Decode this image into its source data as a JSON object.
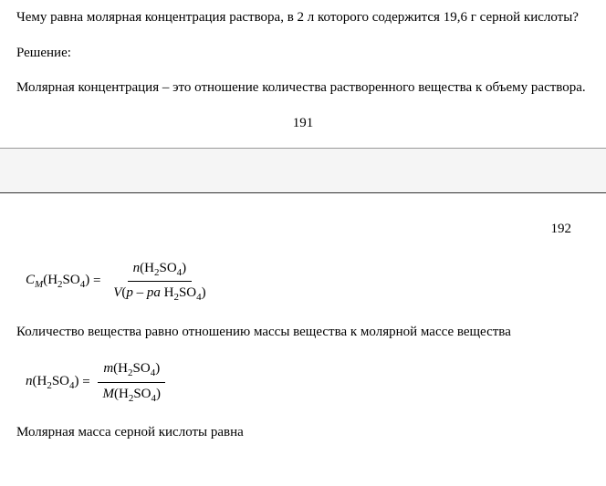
{
  "page1": {
    "question": "Чему равна молярная концентрация раствора, в 2 л которого содержится 19,6 г серной кислоты?",
    "solutionLabel": "Решение:",
    "definition": "Молярная концентрация – это отношение количества растворенного вещества к объему раствора.",
    "pageNumber": "191"
  },
  "page2": {
    "pageNumber": "192",
    "formula1": {
      "lhs": {
        "symbol": "C",
        "subscript": "M",
        "arg": "H₂SO₄"
      },
      "numerator": {
        "symbol": "n",
        "arg": "H₂SO₄"
      },
      "denominator": {
        "symbol": "V",
        "arg": "p – ра H₂SO₄"
      }
    },
    "text1": "Количество вещества равно отношению массы вещества к молярной массе вещества",
    "formula2": {
      "lhs": {
        "symbol": "n",
        "arg": "H₂SO₄"
      },
      "numerator": {
        "symbol": "m",
        "arg": "H₂SO₄"
      },
      "denominator": {
        "symbol": "M",
        "arg": "H₂SO₄"
      }
    },
    "text2": "Молярная масса серной кислоты равна"
  },
  "chem": {
    "H2SO4_parts": {
      "H": "H",
      "two": "2",
      "SO": "SO",
      "four": "4"
    }
  }
}
